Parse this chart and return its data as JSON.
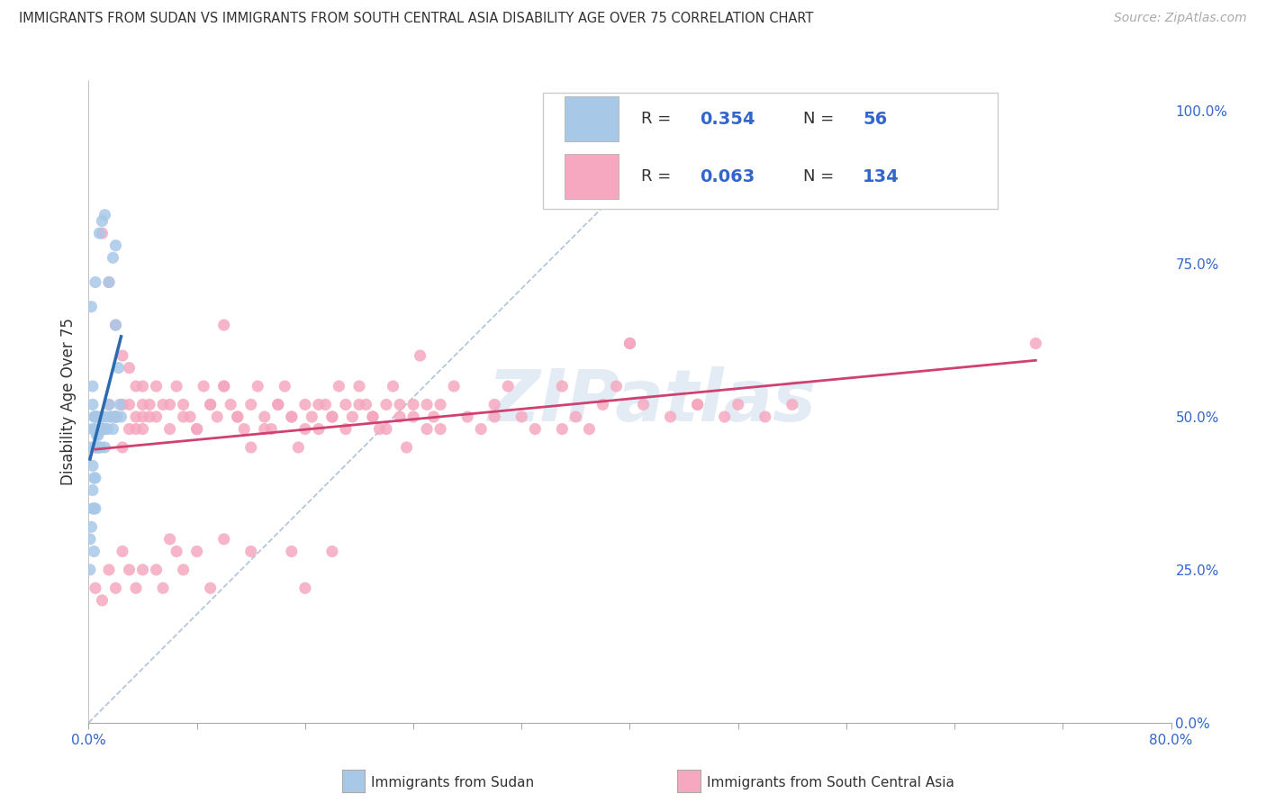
{
  "title": "IMMIGRANTS FROM SUDAN VS IMMIGRANTS FROM SOUTH CENTRAL ASIA DISABILITY AGE OVER 75 CORRELATION CHART",
  "source": "Source: ZipAtlas.com",
  "ylabel": "Disability Age Over 75",
  "xlabel_sudan": "Immigrants from Sudan",
  "xlabel_sca": "Immigrants from South Central Asia",
  "sudan_R": 0.354,
  "sudan_N": 56,
  "sca_R": 0.063,
  "sca_N": 134,
  "sudan_color": "#a8c8e8",
  "sca_color": "#f5a8c0",
  "sudan_line_color": "#2a6ab0",
  "sca_line_color": "#d04070",
  "xmin": 0.0,
  "xmax": 0.8,
  "ymin": 0.0,
  "ymax": 1.05,
  "right_yticks": [
    0.0,
    0.25,
    0.5,
    0.75,
    1.0
  ],
  "right_yticklabels": [
    "0.0%",
    "25.0%",
    "50.0%",
    "75.0%",
    "100.0%"
  ],
  "watermark": "ZIPatlas",
  "background_color": "#ffffff",
  "grid_color": "#c8d8e8",
  "tick_label_color": "#3366cc",
  "title_color": "#333333",
  "label_color": "#333333",
  "legend_R_N_color": "#3366cc",
  "sudan_scatter_x": [
    0.002,
    0.003,
    0.003,
    0.003,
    0.003,
    0.004,
    0.004,
    0.004,
    0.005,
    0.005,
    0.005,
    0.005,
    0.006,
    0.006,
    0.007,
    0.007,
    0.008,
    0.008,
    0.009,
    0.01,
    0.01,
    0.01,
    0.011,
    0.012,
    0.012,
    0.013,
    0.014,
    0.015,
    0.015,
    0.016,
    0.017,
    0.018,
    0.018,
    0.019,
    0.02,
    0.02,
    0.021,
    0.022,
    0.023,
    0.024,
    0.001,
    0.001,
    0.002,
    0.002,
    0.003,
    0.003,
    0.004,
    0.004,
    0.005,
    0.005,
    0.006,
    0.007,
    0.008,
    0.009,
    0.01,
    0.012
  ],
  "sudan_scatter_y": [
    0.68,
    0.52,
    0.48,
    0.42,
    0.38,
    0.5,
    0.4,
    0.35,
    0.72,
    0.5,
    0.45,
    0.4,
    0.5,
    0.45,
    0.5,
    0.45,
    0.8,
    0.48,
    0.48,
    0.82,
    0.5,
    0.48,
    0.48,
    0.83,
    0.45,
    0.5,
    0.48,
    0.72,
    0.52,
    0.5,
    0.5,
    0.76,
    0.48,
    0.5,
    0.78,
    0.65,
    0.5,
    0.58,
    0.52,
    0.5,
    0.3,
    0.25,
    0.45,
    0.32,
    0.55,
    0.35,
    0.48,
    0.28,
    0.5,
    0.35,
    0.47,
    0.47,
    0.45,
    0.45,
    0.5,
    0.48
  ],
  "sca_scatter_x": [
    0.01,
    0.015,
    0.02,
    0.02,
    0.025,
    0.025,
    0.03,
    0.03,
    0.035,
    0.035,
    0.04,
    0.04,
    0.04,
    0.045,
    0.045,
    0.05,
    0.05,
    0.055,
    0.06,
    0.065,
    0.07,
    0.075,
    0.08,
    0.085,
    0.09,
    0.095,
    0.1,
    0.1,
    0.105,
    0.11,
    0.115,
    0.12,
    0.125,
    0.13,
    0.135,
    0.14,
    0.145,
    0.15,
    0.155,
    0.16,
    0.165,
    0.17,
    0.175,
    0.18,
    0.185,
    0.19,
    0.195,
    0.2,
    0.205,
    0.21,
    0.215,
    0.22,
    0.225,
    0.23,
    0.235,
    0.24,
    0.245,
    0.25,
    0.255,
    0.26,
    0.27,
    0.28,
    0.29,
    0.3,
    0.31,
    0.32,
    0.33,
    0.35,
    0.36,
    0.37,
    0.38,
    0.39,
    0.4,
    0.41,
    0.43,
    0.45,
    0.47,
    0.48,
    0.5,
    0.52,
    0.005,
    0.01,
    0.015,
    0.02,
    0.025,
    0.03,
    0.035,
    0.04,
    0.05,
    0.055,
    0.06,
    0.065,
    0.07,
    0.08,
    0.09,
    0.1,
    0.12,
    0.15,
    0.16,
    0.18,
    0.005,
    0.01,
    0.015,
    0.02,
    0.025,
    0.03,
    0.035,
    0.04,
    0.06,
    0.07,
    0.08,
    0.09,
    0.1,
    0.11,
    0.12,
    0.13,
    0.14,
    0.15,
    0.16,
    0.17,
    0.18,
    0.19,
    0.2,
    0.21,
    0.22,
    0.23,
    0.24,
    0.25,
    0.26,
    0.3,
    0.35,
    0.4,
    0.45,
    0.7
  ],
  "sca_scatter_y": [
    0.8,
    0.72,
    0.65,
    0.5,
    0.6,
    0.52,
    0.58,
    0.48,
    0.55,
    0.5,
    0.55,
    0.52,
    0.48,
    0.52,
    0.5,
    0.5,
    0.55,
    0.52,
    0.48,
    0.55,
    0.52,
    0.5,
    0.48,
    0.55,
    0.52,
    0.5,
    0.65,
    0.55,
    0.52,
    0.5,
    0.48,
    0.52,
    0.55,
    0.5,
    0.48,
    0.52,
    0.55,
    0.5,
    0.45,
    0.52,
    0.5,
    0.48,
    0.52,
    0.5,
    0.55,
    0.52,
    0.5,
    0.55,
    0.52,
    0.5,
    0.48,
    0.52,
    0.55,
    0.5,
    0.45,
    0.52,
    0.6,
    0.52,
    0.5,
    0.48,
    0.55,
    0.5,
    0.48,
    0.52,
    0.55,
    0.5,
    0.48,
    0.55,
    0.5,
    0.48,
    0.52,
    0.55,
    0.62,
    0.52,
    0.5,
    0.52,
    0.5,
    0.52,
    0.5,
    0.52,
    0.22,
    0.2,
    0.25,
    0.22,
    0.28,
    0.25,
    0.22,
    0.25,
    0.25,
    0.22,
    0.3,
    0.28,
    0.25,
    0.28,
    0.22,
    0.3,
    0.28,
    0.28,
    0.22,
    0.28,
    0.5,
    0.48,
    0.52,
    0.5,
    0.45,
    0.52,
    0.48,
    0.5,
    0.52,
    0.5,
    0.48,
    0.52,
    0.55,
    0.5,
    0.45,
    0.48,
    0.52,
    0.5,
    0.48,
    0.52,
    0.5,
    0.48,
    0.52,
    0.5,
    0.48,
    0.52,
    0.5,
    0.48,
    0.52,
    0.5,
    0.48,
    0.62,
    0.52,
    0.62
  ]
}
